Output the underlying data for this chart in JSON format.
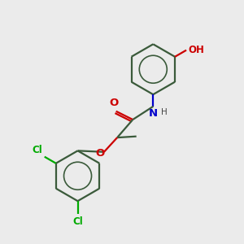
{
  "bg_color": "#ebebeb",
  "bond_color": "#3a5a3a",
  "bond_width": 1.6,
  "o_color": "#cc0000",
  "n_color": "#0000cc",
  "cl_color": "#00aa00",
  "h_color": "#444444",
  "font_size_atom": 8.5,
  "fig_size": [
    3.0,
    3.0
  ],
  "dpi": 100,
  "xlim": [
    0,
    10
  ],
  "ylim": [
    0,
    10
  ]
}
